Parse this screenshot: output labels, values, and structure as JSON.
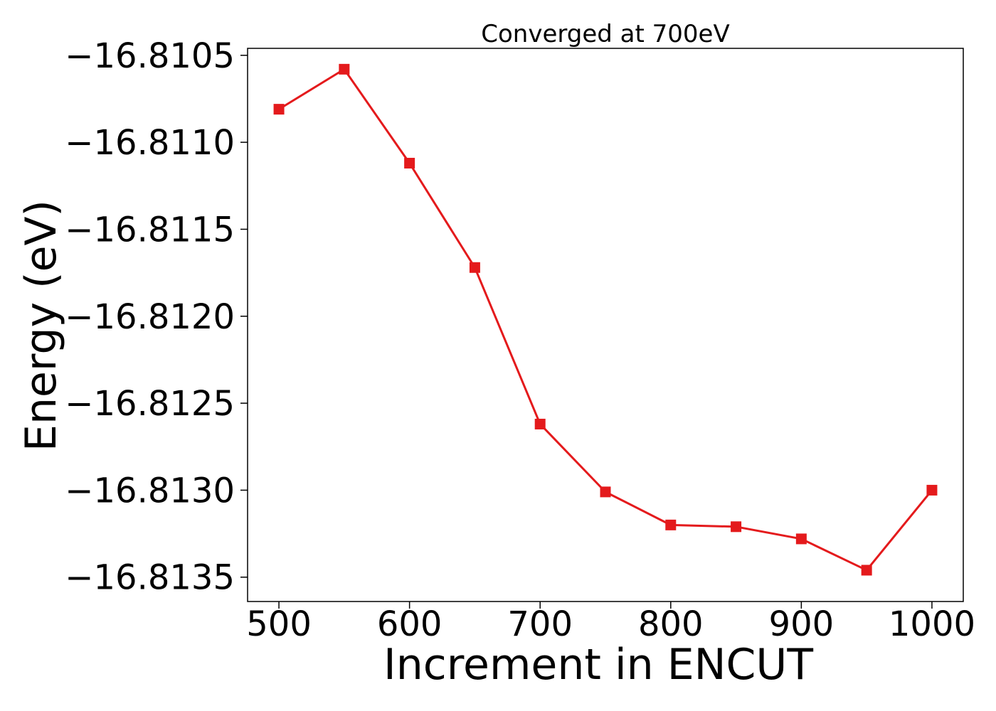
{
  "chart_data": {
    "type": "line",
    "title": "Converged at 700eV",
    "xlabel": "Increment in ENCUT",
    "ylabel": "Energy (eV)",
    "x": [
      500,
      550,
      600,
      650,
      700,
      750,
      800,
      850,
      900,
      950,
      1000
    ],
    "series": [
      {
        "values": [
          -16.81081,
          -16.81058,
          -16.81112,
          -16.81172,
          -16.81262,
          -16.81301,
          -16.8132,
          -16.81321,
          -16.81328,
          -16.81346,
          -16.813
        ]
      }
    ],
    "xticks": [
      500,
      600,
      700,
      800,
      900,
      1000
    ],
    "xtick_labels": [
      "500",
      "600",
      "700",
      "800",
      "900",
      "1000"
    ],
    "yticks": [
      -16.8105,
      -16.811,
      -16.8115,
      -16.812,
      -16.8125,
      -16.813,
      -16.8135
    ],
    "ytick_labels": [
      "−16.8105",
      "−16.8110",
      "−16.8115",
      "−16.8120",
      "−16.8125",
      "−16.8130",
      "−16.8135"
    ],
    "xlim": [
      476,
      1024
    ],
    "ylim": [
      -16.81364,
      -16.81046
    ],
    "grid": false,
    "line_color": "#e41a1c",
    "marker": "square"
  }
}
